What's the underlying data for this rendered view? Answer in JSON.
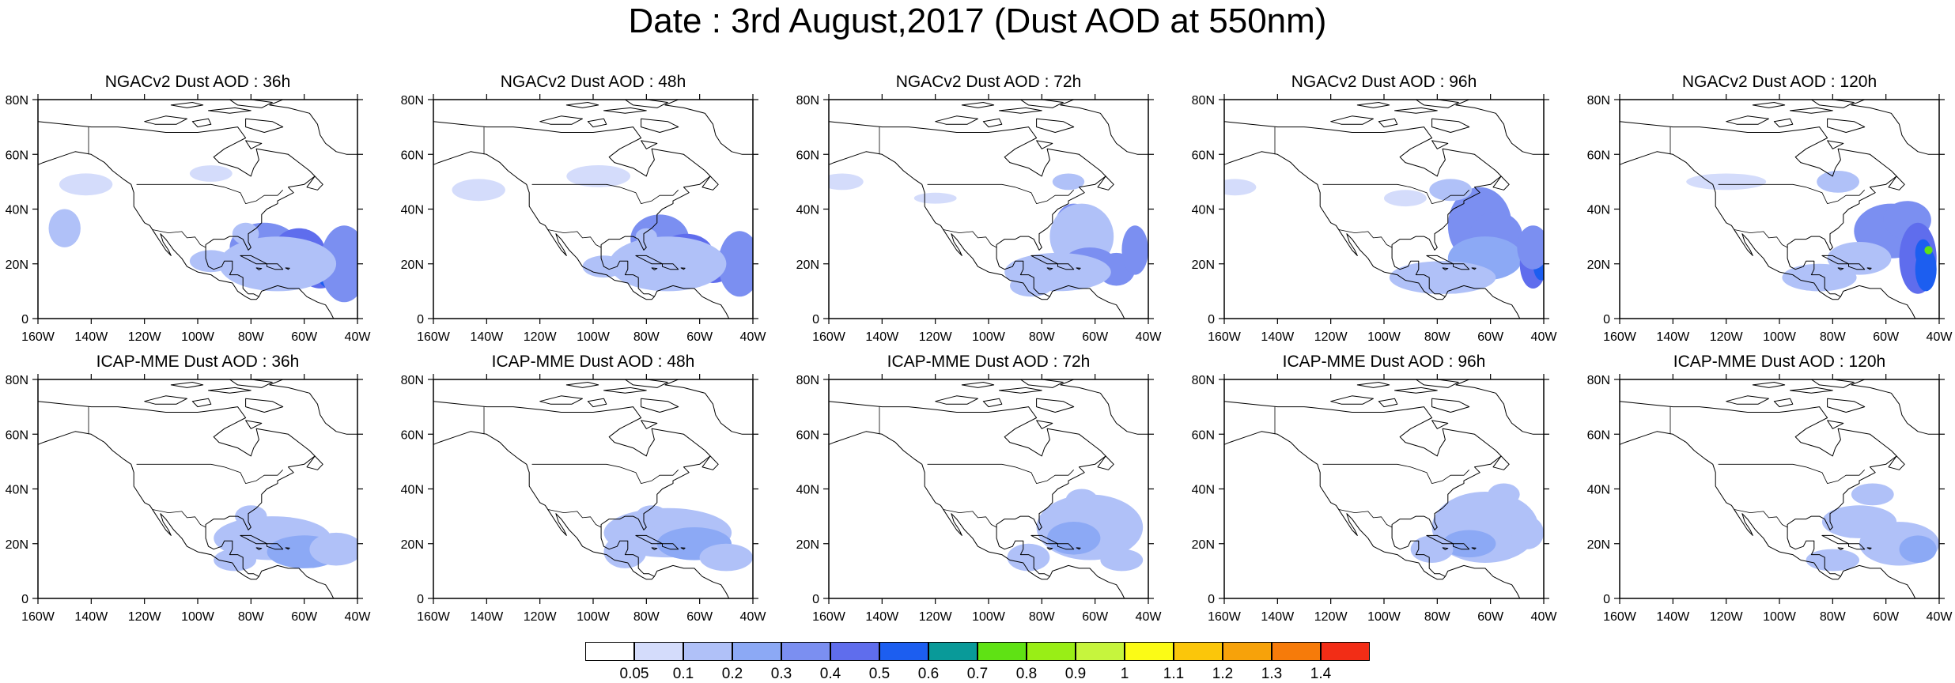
{
  "title": "Date : 3rd August,2017 (Dust AOD at 550nm)",
  "panels": [
    {
      "title": "NGACv2 Dust AOD : 36h",
      "model": "NGACv2",
      "lead": "36h",
      "plumes": [
        [
          -75,
          26,
          13,
          9,
          0.3
        ],
        [
          -62,
          24,
          10,
          9,
          0.4
        ],
        [
          -54,
          18,
          8,
          7,
          0.45
        ],
        [
          -50,
          16,
          5,
          5,
          0.5
        ],
        [
          -45,
          20,
          9,
          14,
          0.3
        ],
        [
          -70,
          20,
          22,
          10,
          0.15
        ],
        [
          -95,
          21,
          8,
          4,
          0.1
        ],
        [
          -82,
          31,
          5,
          4,
          0.15
        ],
        [
          -142,
          49,
          10,
          4,
          0.06
        ],
        [
          -95,
          53,
          8,
          3,
          0.06
        ],
        [
          -150,
          33,
          6,
          7,
          0.1
        ]
      ]
    },
    {
      "title": "NGACv2 Dust AOD : 48h",
      "model": "NGACv2",
      "lead": "48h",
      "plumes": [
        [
          -75,
          29,
          11,
          9,
          0.35
        ],
        [
          -65,
          24,
          10,
          7,
          0.4
        ],
        [
          -55,
          19,
          8,
          6,
          0.45
        ],
        [
          -47,
          15,
          5,
          4,
          0.45
        ],
        [
          -45,
          20,
          8,
          12,
          0.3
        ],
        [
          -72,
          20,
          22,
          10,
          0.15
        ],
        [
          -96,
          19,
          8,
          4,
          0.1
        ],
        [
          -98,
          52,
          12,
          4,
          0.08
        ],
        [
          -143,
          47,
          10,
          4,
          0.06
        ],
        [
          -80,
          30,
          4,
          3,
          0.15
        ]
      ]
    },
    {
      "title": "NGACv2 Dust AOD : 72h",
      "model": "NGACv2",
      "lead": "72h",
      "plumes": [
        [
          -68,
          34,
          7,
          8,
          0.3
        ],
        [
          -65,
          30,
          12,
          12,
          0.15
        ],
        [
          -62,
          20,
          10,
          6,
          0.3
        ],
        [
          -52,
          18,
          7,
          6,
          0.35
        ],
        [
          -45,
          25,
          5,
          9,
          0.3
        ],
        [
          -74,
          17,
          20,
          7,
          0.15
        ],
        [
          -84,
          12,
          8,
          4,
          0.1
        ],
        [
          -70,
          50,
          6,
          3,
          0.1
        ],
        [
          -155,
          50,
          8,
          3,
          0.06
        ],
        [
          -120,
          44,
          8,
          2,
          0.06
        ]
      ]
    },
    {
      "title": "NGACv2 Dust AOD : 96h",
      "model": "NGACv2",
      "lead": "96h",
      "plumes": [
        [
          -64,
          34,
          12,
          14,
          0.3
        ],
        [
          -58,
          30,
          10,
          9,
          0.35
        ],
        [
          -62,
          22,
          14,
          8,
          0.2
        ],
        [
          -44,
          20,
          5,
          9,
          0.45
        ],
        [
          -41,
          20,
          3,
          6,
          0.55
        ],
        [
          -44,
          26,
          6,
          8,
          0.3
        ],
        [
          -78,
          15,
          20,
          6,
          0.15
        ],
        [
          -75,
          47,
          8,
          4,
          0.1
        ],
        [
          -156,
          48,
          8,
          3,
          0.06
        ],
        [
          -92,
          44,
          8,
          3,
          0.06
        ]
      ]
    },
    {
      "title": "NGACv2 Dust AOD : 120h",
      "model": "NGACv2",
      "lead": "120h",
      "plumes": [
        [
          -58,
          32,
          14,
          10,
          0.3
        ],
        [
          -52,
          36,
          9,
          7,
          0.3
        ],
        [
          -48,
          22,
          7,
          13,
          0.4
        ],
        [
          -45,
          18,
          4,
          8,
          0.5
        ],
        [
          -46,
          24,
          3,
          5,
          0.55
        ],
        [
          -44,
          25,
          1.5,
          1.5,
          0.75
        ],
        [
          -70,
          22,
          12,
          6,
          0.15
        ],
        [
          -85,
          15,
          14,
          5,
          0.15
        ],
        [
          -78,
          50,
          8,
          4,
          0.1
        ],
        [
          -120,
          50,
          15,
          3,
          0.06
        ]
      ]
    },
    {
      "title": "ICAP-MME Dust AOD : 36h",
      "model": "ICAP-MME",
      "lead": "36h",
      "plumes": [
        [
          -72,
          22,
          22,
          8,
          0.15
        ],
        [
          -60,
          17,
          14,
          6,
          0.2
        ],
        [
          -48,
          18,
          10,
          6,
          0.15
        ],
        [
          -80,
          30,
          6,
          4,
          0.1
        ],
        [
          -86,
          14,
          8,
          4,
          0.1
        ]
      ]
    },
    {
      "title": "ICAP-MME Dust AOD : 48h",
      "model": "ICAP-MME",
      "lead": "48h",
      "plumes": [
        [
          -72,
          24,
          24,
          9,
          0.15
        ],
        [
          -62,
          20,
          14,
          6,
          0.2
        ],
        [
          -50,
          15,
          10,
          5,
          0.15
        ],
        [
          -88,
          17,
          8,
          6,
          0.15
        ],
        [
          -78,
          30,
          6,
          4,
          0.1
        ]
      ]
    },
    {
      "title": "ICAP-MME Dust AOD : 72h",
      "model": "ICAP-MME",
      "lead": "72h",
      "plumes": [
        [
          -62,
          26,
          20,
          12,
          0.15
        ],
        [
          -68,
          22,
          10,
          6,
          0.2
        ],
        [
          -50,
          14,
          8,
          4,
          0.15
        ],
        [
          -85,
          15,
          8,
          5,
          0.1
        ],
        [
          -65,
          36,
          6,
          4,
          0.1
        ]
      ]
    },
    {
      "title": "ICAP-MME Dust AOD : 96h",
      "model": "ICAP-MME",
      "lead": "96h",
      "plumes": [
        [
          -62,
          26,
          20,
          13,
          0.15
        ],
        [
          -68,
          20,
          10,
          5,
          0.2
        ],
        [
          -46,
          24,
          6,
          6,
          0.15
        ],
        [
          -82,
          18,
          8,
          5,
          0.1
        ],
        [
          -55,
          38,
          6,
          4,
          0.1
        ]
      ]
    },
    {
      "title": "ICAP-MME Dust AOD : 120h",
      "model": "ICAP-MME",
      "lead": "120h",
      "plumes": [
        [
          -55,
          20,
          15,
          8,
          0.15
        ],
        [
          -48,
          18,
          7,
          5,
          0.2
        ],
        [
          -70,
          28,
          14,
          6,
          0.1
        ],
        [
          -65,
          38,
          8,
          4,
          0.1
        ],
        [
          -80,
          14,
          10,
          4,
          0.1
        ]
      ]
    }
  ],
  "axes": {
    "lon_ticks": [
      "160W",
      "140W",
      "120W",
      "100W",
      "80W",
      "60W",
      "40W"
    ],
    "lat_ticks": [
      "0",
      "20N",
      "40N",
      "60N",
      "80N"
    ],
    "lon_range": [
      -160,
      -40
    ],
    "lat_range": [
      0,
      80
    ]
  },
  "colorbar": {
    "levels": [
      "0.05",
      "0.1",
      "0.2",
      "0.3",
      "0.4",
      "0.5",
      "0.6",
      "0.7",
      "0.8",
      "0.9",
      "1",
      "1.1",
      "1.2",
      "1.3",
      "1.4"
    ],
    "colors": [
      "#ffffff",
      "#d4dcfb",
      "#b0c1f8",
      "#8ca9f5",
      "#7b8ff1",
      "#5f6ded",
      "#1c5ef0",
      "#099a99",
      "#5fe214",
      "#99ee16",
      "#c6f53d",
      "#fbfb16",
      "#fbc60a",
      "#f7a20a",
      "#f67b0a",
      "#f22d16"
    ]
  }
}
